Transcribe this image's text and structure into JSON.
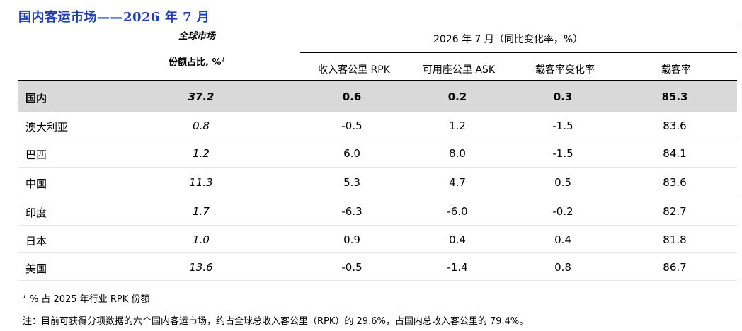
{
  "title": "国内客运市场——2026 年 7 月",
  "header": {
    "global_market": "全球市场",
    "share_label": "份额占比, %",
    "share_sup": "1",
    "period_label": "2026 年 7 月（同比变化率，%）",
    "columns": [
      "收入客公里 RPK",
      "可用座公里 ASK",
      "载客率变化率",
      "载客率"
    ]
  },
  "rows": [
    {
      "name": "国内",
      "share": "37.2",
      "rpk": "0.6",
      "ask": "0.2",
      "plf_change": "0.3",
      "plf": "85.3"
    },
    {
      "name": "澳大利亚",
      "share": "0.8",
      "rpk": "-0.5",
      "ask": "1.2",
      "plf_change": "-1.5",
      "plf": "83.6"
    },
    {
      "name": "巴西",
      "share": "1.2",
      "rpk": "6.0",
      "ask": "8.0",
      "plf_change": "-1.5",
      "plf": "84.1"
    },
    {
      "name": "中国",
      "share": "11.3",
      "rpk": "5.3",
      "ask": "4.7",
      "plf_change": "0.5",
      "plf": "83.6"
    },
    {
      "name": "印度",
      "share": "1.7",
      "rpk": "-6.3",
      "ask": "-6.0",
      "plf_change": "-0.2",
      "plf": "82.7"
    },
    {
      "name": "日本",
      "share": "1.0",
      "rpk": "0.9",
      "ask": "0.4",
      "plf_change": "0.4",
      "plf": "81.8"
    },
    {
      "name": "美国",
      "share": "13.6",
      "rpk": "-0.5",
      "ask": "-1.4",
      "plf_change": "0.8",
      "plf": "86.7"
    }
  ],
  "footnotes": {
    "note1_sup": "1",
    "note1": " % 占 2025 年行业 RPK 份额",
    "note2": "注：目前可获得分项数据的六个国内客运市场，约占全球总收入客公里（RPK）的 29.6%，占国内总收入客公里的 79.4%。"
  }
}
